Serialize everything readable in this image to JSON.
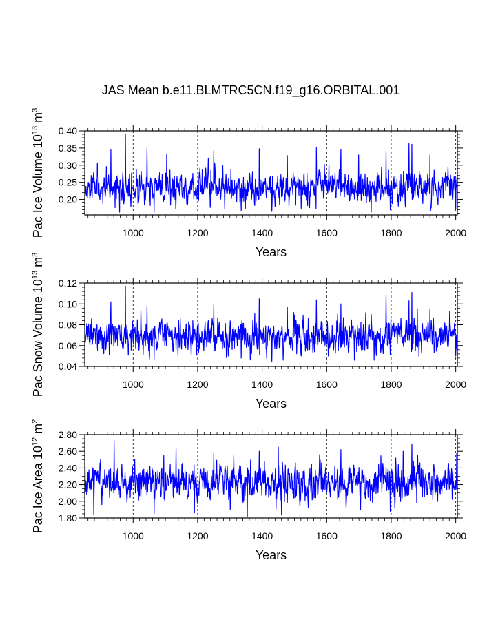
{
  "title": "JAS Mean b.e11.BLMTRC5CN.f19_g16.ORBITAL.001",
  "chart_data": [
    {
      "type": "line",
      "name": "pac-ice-volume",
      "ylabel": {
        "prefix": "Pac Ice Volume 10",
        "exp": "13",
        "unit": " m",
        "unit_exp": "3"
      },
      "xlabel": "Years",
      "xlim": [
        850,
        2005
      ],
      "ylim": [
        0.155,
        0.4
      ],
      "xticks": [
        1000,
        1200,
        1400,
        1600,
        1800,
        2000
      ],
      "xtick_labels": [
        "1000",
        "1200",
        "1400",
        "1600",
        "1800",
        "2000"
      ],
      "yticks": [
        0.2,
        0.25,
        0.3,
        0.35,
        0.4
      ],
      "ytick_labels": [
        "0.20",
        "0.25",
        "0.30",
        "0.35",
        "0.40"
      ],
      "ytick_minor": [
        0.16,
        0.17,
        0.18,
        0.19,
        0.21,
        0.22,
        0.23,
        0.24,
        0.26,
        0.27,
        0.28,
        0.29,
        0.31,
        0.32,
        0.33,
        0.34,
        0.36,
        0.37,
        0.38,
        0.39
      ],
      "grid_x_dashed": [
        1000,
        1200,
        1400,
        1600,
        1800,
        2000
      ],
      "series": {
        "name": "Pac Ice Volume",
        "color": "#0000ff",
        "x_start": 850,
        "x_end": 2005,
        "base": 0.234,
        "spread": 0.022,
        "min": 0.163,
        "max": 0.375,
        "seed": 11,
        "peaks": [
          [
            976,
            0.39
          ],
          [
            1855,
            0.363
          ],
          [
            1864,
            0.361
          ],
          [
            1568,
            0.352
          ],
          [
            1043,
            0.35
          ],
          [
            1391,
            0.348
          ],
          [
            1644,
            0.346
          ],
          [
            931,
            0.345
          ],
          [
            1250,
            0.342
          ],
          [
            1784,
            0.34
          ],
          [
            1920,
            0.33
          ],
          [
            1104,
            0.332
          ],
          [
            1699,
            0.33
          ],
          [
            1478,
            0.328
          ]
        ],
        "troughs": [
          [
            1065,
            0.163
          ],
          [
            1430,
            0.165
          ],
          [
            1335,
            0.167
          ],
          [
            1797,
            0.17
          ],
          [
            2000,
            0.172
          ],
          [
            1521,
            0.174
          ],
          [
            944,
            0.176
          ]
        ]
      }
    },
    {
      "type": "line",
      "name": "pac-snow-volume",
      "ylabel": {
        "prefix": "Pac Snow Volume 10",
        "exp": "13",
        "unit": " m",
        "unit_exp": "3"
      },
      "xlabel": "Years",
      "xlim": [
        850,
        2005
      ],
      "ylim": [
        0.04,
        0.12
      ],
      "xticks": [
        1000,
        1200,
        1400,
        1600,
        1800,
        2000
      ],
      "xtick_labels": [
        "1000",
        "1200",
        "1400",
        "1600",
        "1800",
        "2000"
      ],
      "yticks": [
        0.04,
        0.06,
        0.08,
        0.1,
        0.12
      ],
      "ytick_labels": [
        "0.04",
        "0.06",
        "0.08",
        "0.10",
        "0.12"
      ],
      "ytick_minor": [
        0.044,
        0.048,
        0.052,
        0.056,
        0.064,
        0.068,
        0.072,
        0.076,
        0.084,
        0.088,
        0.092,
        0.096,
        0.104,
        0.108,
        0.112,
        0.116
      ],
      "grid_x_dashed": [
        1000,
        1200,
        1400,
        1600,
        1800,
        2000
      ],
      "series": {
        "name": "Pac Snow Volume",
        "color": "#0000ff",
        "x_start": 850,
        "x_end": 2005,
        "base": 0.068,
        "spread": 0.0075,
        "min": 0.046,
        "max": 0.11,
        "seed": 23,
        "peaks": [
          [
            976,
            0.117
          ],
          [
            1864,
            0.111
          ],
          [
            1784,
            0.108
          ],
          [
            1391,
            0.105
          ],
          [
            1568,
            0.104
          ],
          [
            1855,
            0.103
          ],
          [
            931,
            0.102
          ],
          [
            1644,
            0.1
          ],
          [
            1250,
            0.099
          ],
          [
            1043,
            0.098
          ],
          [
            1478,
            0.097
          ],
          [
            1920,
            0.095
          ]
        ],
        "troughs": [
          [
            1430,
            0.045
          ],
          [
            1065,
            0.047
          ],
          [
            1335,
            0.048
          ],
          [
            2000,
            0.05
          ],
          [
            1521,
            0.05
          ],
          [
            1797,
            0.051
          ]
        ]
      }
    },
    {
      "type": "line",
      "name": "pac-ice-area",
      "ylabel": {
        "prefix": "Pac Ice Area 10",
        "exp": "12",
        "unit": " m",
        "unit_exp": "2"
      },
      "xlabel": "Years",
      "xlim": [
        850,
        2005
      ],
      "ylim": [
        1.8,
        2.8
      ],
      "xticks": [
        1000,
        1200,
        1400,
        1600,
        1800,
        2000
      ],
      "xtick_labels": [
        "1000",
        "1200",
        "1400",
        "1600",
        "1800",
        "2000"
      ],
      "yticks": [
        1.8,
        2.0,
        2.2,
        2.4,
        2.6,
        2.8
      ],
      "ytick_labels": [
        "1.80",
        "2.00",
        "2.20",
        "2.40",
        "2.60",
        "2.80"
      ],
      "ytick_minor": [
        1.85,
        1.9,
        1.95,
        2.05,
        2.1,
        2.15,
        2.25,
        2.3,
        2.35,
        2.45,
        2.5,
        2.55,
        2.65,
        2.7,
        2.75
      ],
      "grid_x_dashed": [
        1000,
        1200,
        1400,
        1600,
        1800,
        2000
      ],
      "series": {
        "name": "Pac Ice Area",
        "color": "#0000ff",
        "x_start": 850,
        "x_end": 2005,
        "base": 2.22,
        "spread": 0.1,
        "min": 1.88,
        "max": 2.55,
        "seed": 37,
        "peaks": [
          [
            941,
            2.73
          ],
          [
            1450,
            2.65
          ],
          [
            1864,
            2.69
          ],
          [
            1837,
            2.6
          ],
          [
            1133,
            2.63
          ],
          [
            1391,
            2.6
          ],
          [
            1644,
            2.62
          ],
          [
            2003,
            2.58
          ],
          [
            1578,
            2.56
          ],
          [
            1250,
            2.58
          ],
          [
            1095,
            2.55
          ]
        ],
        "troughs": [
          [
            1354,
            1.82
          ],
          [
            1460,
            1.84
          ],
          [
            878,
            1.84
          ],
          [
            1065,
            1.85
          ],
          [
            1190,
            1.86
          ],
          [
            1797,
            1.88
          ],
          [
            1705,
            1.9
          ]
        ]
      }
    }
  ]
}
